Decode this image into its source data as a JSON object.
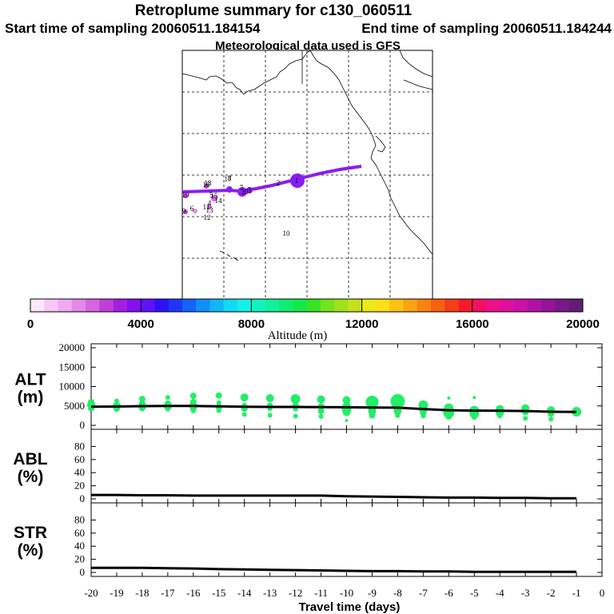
{
  "header": {
    "title": "Retroplume summary for c130_060511",
    "start_time": "Start time of sampling 20060511.184154",
    "end_time": "End time of sampling 20060511.184244",
    "met_data": "Meteorological data used is GFS"
  },
  "map": {
    "labels": [
      "1",
      "2",
      "3",
      "4",
      "5",
      "6",
      "7",
      "8",
      "9",
      "10",
      "11",
      "12",
      "13",
      "14",
      "15",
      "16",
      "17",
      "18",
      "19",
      "20"
    ]
  },
  "colorbar": {
    "title": "Altitude (m)",
    "min": 0,
    "max": 20000,
    "tick_labels": [
      "0",
      "4000",
      "8000",
      "12000",
      "16000",
      "20000"
    ],
    "colors": [
      "#fbe8fb",
      "#f5c8f5",
      "#eeaaf0",
      "#e38ae8",
      "#d465e0",
      "#c03fd6",
      "#a41fe0",
      "#8610f0",
      "#5f12f8",
      "#2f10f6",
      "#1f36fa",
      "#1464fa",
      "#118ff8",
      "#11b7f5",
      "#13d9f3",
      "#14f1e6",
      "#12f2c0",
      "#12f09a",
      "#11ec72",
      "#13e84a",
      "#36e427",
      "#73e31d",
      "#9ee21a",
      "#c6e119",
      "#eaea18",
      "#fae015",
      "#fcc212",
      "#fca310",
      "#fa830e",
      "#f8610e",
      "#f53d18",
      "#f61a2a",
      "#f21160",
      "#ec1186",
      "#e0109e",
      "#cc10a8",
      "#b210a8",
      "#951397",
      "#7a1888",
      "#621c74"
    ]
  },
  "chart_data": [
    {
      "type": "scatter",
      "panel": "ALT",
      "ylabel": "ALT (m)",
      "ylabel_lines": [
        "ALT",
        "(m)"
      ],
      "ylim": [
        0,
        20000
      ],
      "yticks": [
        "0",
        "5000",
        "10000",
        "15000",
        "20000"
      ],
      "xlim": [
        -20,
        0
      ],
      "median_line": {
        "x": [
          -20,
          -19,
          -18,
          -17,
          -16,
          -15,
          -14,
          -13,
          -12,
          -11,
          -10,
          -9,
          -8,
          -7,
          -6,
          -5,
          -4,
          -3,
          -2,
          -1
        ],
        "y": [
          4800,
          4850,
          4950,
          5000,
          5000,
          4900,
          4800,
          4750,
          4750,
          4700,
          4650,
          4600,
          4550,
          4200,
          3900,
          3800,
          3750,
          3700,
          3500,
          3450
        ]
      },
      "points": [
        {
          "x": -20,
          "y": 6000,
          "r": 4
        },
        {
          "x": -20,
          "y": 5200,
          "r": 5
        },
        {
          "x": -20,
          "y": 4400,
          "r": 4
        },
        {
          "x": -19,
          "y": 6300,
          "r": 3
        },
        {
          "x": -19,
          "y": 5000,
          "r": 5
        },
        {
          "x": -19,
          "y": 4300,
          "r": 4
        },
        {
          "x": -18,
          "y": 6800,
          "r": 4
        },
        {
          "x": -18,
          "y": 5600,
          "r": 4
        },
        {
          "x": -18,
          "y": 4800,
          "r": 5
        },
        {
          "x": -18,
          "y": 4200,
          "r": 3
        },
        {
          "x": -17,
          "y": 7200,
          "r": 3
        },
        {
          "x": -17,
          "y": 5600,
          "r": 4
        },
        {
          "x": -17,
          "y": 4900,
          "r": 5
        },
        {
          "x": -17,
          "y": 4200,
          "r": 3
        },
        {
          "x": -16,
          "y": 7600,
          "r": 4
        },
        {
          "x": -16,
          "y": 6000,
          "r": 4
        },
        {
          "x": -16,
          "y": 5000,
          "r": 5
        },
        {
          "x": -16,
          "y": 4300,
          "r": 4
        },
        {
          "x": -16,
          "y": 3700,
          "r": 3
        },
        {
          "x": -15,
          "y": 7700,
          "r": 4
        },
        {
          "x": -15,
          "y": 5800,
          "r": 3
        },
        {
          "x": -15,
          "y": 4700,
          "r": 4
        },
        {
          "x": -15,
          "y": 3800,
          "r": 3
        },
        {
          "x": -14,
          "y": 7200,
          "r": 5
        },
        {
          "x": -14,
          "y": 5200,
          "r": 3
        },
        {
          "x": -14,
          "y": 4300,
          "r": 4
        },
        {
          "x": -14,
          "y": 2800,
          "r": 3
        },
        {
          "x": -13,
          "y": 7000,
          "r": 5
        },
        {
          "x": -13,
          "y": 5000,
          "r": 4
        },
        {
          "x": -13,
          "y": 4300,
          "r": 3
        },
        {
          "x": -13,
          "y": 2600,
          "r": 3
        },
        {
          "x": -12,
          "y": 6800,
          "r": 6
        },
        {
          "x": -12,
          "y": 5000,
          "r": 4
        },
        {
          "x": -12,
          "y": 4200,
          "r": 3
        },
        {
          "x": -12,
          "y": 2400,
          "r": 3
        },
        {
          "x": -11,
          "y": 6700,
          "r": 5
        },
        {
          "x": -11,
          "y": 4900,
          "r": 4
        },
        {
          "x": -11,
          "y": 3700,
          "r": 4
        },
        {
          "x": -11,
          "y": 2300,
          "r": 3
        },
        {
          "x": -10,
          "y": 6500,
          "r": 5
        },
        {
          "x": -10,
          "y": 5000,
          "r": 5
        },
        {
          "x": -10,
          "y": 4200,
          "r": 6
        },
        {
          "x": -10,
          "y": 3400,
          "r": 5
        },
        {
          "x": -10,
          "y": 1200,
          "r": 2
        },
        {
          "x": -9,
          "y": 6000,
          "r": 8
        },
        {
          "x": -9,
          "y": 5000,
          "r": 6
        },
        {
          "x": -9,
          "y": 3700,
          "r": 5
        },
        {
          "x": -9,
          "y": 2600,
          "r": 4
        },
        {
          "x": -8,
          "y": 6200,
          "r": 9
        },
        {
          "x": -8,
          "y": 4900,
          "r": 6
        },
        {
          "x": -8,
          "y": 3700,
          "r": 5
        },
        {
          "x": -8,
          "y": 2500,
          "r": 3
        },
        {
          "x": -7,
          "y": 5200,
          "r": 6
        },
        {
          "x": -7,
          "y": 4000,
          "r": 5
        },
        {
          "x": -7,
          "y": 3200,
          "r": 4
        },
        {
          "x": -7,
          "y": 2400,
          "r": 3
        },
        {
          "x": -6,
          "y": 7000,
          "r": 2
        },
        {
          "x": -6,
          "y": 4400,
          "r": 6
        },
        {
          "x": -6,
          "y": 3300,
          "r": 7
        },
        {
          "x": -6,
          "y": 2300,
          "r": 4
        },
        {
          "x": -5,
          "y": 7200,
          "r": 2
        },
        {
          "x": -5,
          "y": 3800,
          "r": 6
        },
        {
          "x": -5,
          "y": 3000,
          "r": 6
        },
        {
          "x": -5,
          "y": 2000,
          "r": 3
        },
        {
          "x": -4,
          "y": 4200,
          "r": 5
        },
        {
          "x": -4,
          "y": 3200,
          "r": 5
        },
        {
          "x": -4,
          "y": 2400,
          "r": 3
        },
        {
          "x": -3,
          "y": 4400,
          "r": 5
        },
        {
          "x": -3,
          "y": 3400,
          "r": 4
        },
        {
          "x": -3,
          "y": 1800,
          "r": 3
        },
        {
          "x": -2,
          "y": 3900,
          "r": 5
        },
        {
          "x": -2,
          "y": 3000,
          "r": 4
        },
        {
          "x": -2,
          "y": 1600,
          "r": 3
        },
        {
          "x": -1,
          "y": 3500,
          "r": 6
        }
      ]
    },
    {
      "type": "line",
      "panel": "ABL",
      "ylabel": "ABL (%)",
      "ylabel_lines": [
        "ABL",
        "(%)"
      ],
      "ylim": [
        0,
        100
      ],
      "yticks": [
        "0",
        "20",
        "40",
        "60",
        "80"
      ],
      "x": [
        -20,
        -19,
        -18,
        -17,
        -16,
        -15,
        -14,
        -13,
        -12,
        -11,
        -10,
        -9,
        -8,
        -7,
        -6,
        -5,
        -4,
        -3,
        -2,
        -1
      ],
      "y": [
        6,
        6,
        5.5,
        5.5,
        5,
        5,
        5,
        5,
        5,
        5,
        4,
        3.5,
        3,
        2.5,
        2,
        2,
        1.5,
        1.5,
        1,
        1
      ]
    },
    {
      "type": "line",
      "panel": "STR",
      "ylabel": "STR (%)",
      "ylabel_lines": [
        "STR",
        "(%)"
      ],
      "ylim": [
        0,
        100
      ],
      "yticks": [
        "0",
        "20",
        "40",
        "60",
        "80"
      ],
      "x": [
        -20,
        -19,
        -18,
        -17,
        -16,
        -15,
        -14,
        -13,
        -12,
        -11,
        -10,
        -9,
        -8,
        -7,
        -6,
        -5,
        -4,
        -3,
        -2,
        -1
      ],
      "y": [
        7,
        7,
        7,
        6.5,
        6,
        5,
        4.5,
        4,
        3.5,
        3,
        2.5,
        2,
        2,
        1.5,
        1.5,
        1,
        1,
        1,
        1,
        1
      ]
    }
  ],
  "x_axis": {
    "title": "Travel time (days)",
    "tick_labels": [
      "-20",
      "-19",
      "-18",
      "-17",
      "-16",
      "-15",
      "-14",
      "-13",
      "-12",
      "-11",
      "-10",
      "-9",
      "-8",
      "-7",
      "-6",
      "-5",
      "-4",
      "-3",
      "-2",
      "-1",
      "0"
    ]
  },
  "colors": {
    "scatter": "#22ee66",
    "line": "#000000",
    "plume": "#8a1ef2",
    "plume_light": "#d465e0"
  }
}
